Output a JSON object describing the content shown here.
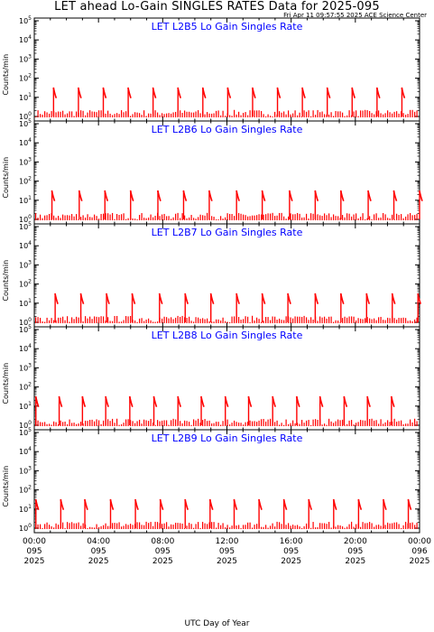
{
  "page": {
    "title": "LET ahead Lo-Gain SINGLES RATES Data for 2025-095",
    "timestamp": "Fri Apr 11 09:57:55 2025 ACE Science Center",
    "x_axis_label": "UTC Day of Year"
  },
  "colors": {
    "data": "#ff0000",
    "panel_title": "#0000ff",
    "axes": "#000000"
  },
  "chart_data": [
    {
      "type": "line",
      "title": "LET L2B5 Lo Gain Singles Rate",
      "ylabel": "Counts/min",
      "ylog": true,
      "ylim": [
        1,
        100000
      ],
      "xlim": [
        0,
        24
      ],
      "y_tick_labels": [
        "10^0",
        "10^1",
        "10^2",
        "10^3",
        "10^4",
        "10^5"
      ],
      "x_tick_labels": [
        [
          "00:00",
          "095",
          "2025"
        ],
        [
          "04:00",
          "095",
          "2025"
        ],
        [
          "08:00",
          "095",
          "2025"
        ],
        [
          "12:00",
          "095",
          "2025"
        ],
        [
          "16:00",
          "095",
          "2025"
        ],
        [
          "20:00",
          "095",
          "2025"
        ],
        [
          "00:00",
          "096",
          "2025"
        ]
      ],
      "series": [
        {
          "x": [
            1.2,
            2.75,
            4.3,
            5.85,
            7.4,
            8.95,
            10.5,
            12.05,
            13.6,
            15.15,
            16.7,
            18.25,
            19.8,
            21.35,
            22.9
          ],
          "y": [
            30,
            30,
            30,
            30,
            30,
            30,
            30,
            30,
            30,
            30,
            30,
            30,
            30,
            30,
            30
          ]
        }
      ]
    },
    {
      "type": "line",
      "title": "LET L2B6 Lo Gain Singles Rate",
      "ylabel": "Counts/min",
      "ylog": true,
      "ylim": [
        1,
        100000
      ],
      "xlim": [
        0,
        24
      ],
      "y_tick_labels": [
        "10^0",
        "10^1",
        "10^2",
        "10^3",
        "10^4",
        "10^5"
      ],
      "x_tick_labels": [
        [
          "00:00",
          "095",
          "2025"
        ],
        [
          "04:00",
          "095",
          "2025"
        ],
        [
          "08:00",
          "095",
          "2025"
        ],
        [
          "12:00",
          "095",
          "2025"
        ],
        [
          "16:00",
          "095",
          "2025"
        ],
        [
          "20:00",
          "095",
          "2025"
        ],
        [
          "00:00",
          "096",
          "2025"
        ]
      ],
      "series": [
        {
          "x": [
            1.1,
            2.8,
            4.4,
            6.0,
            7.7,
            9.3,
            10.9,
            12.6,
            14.2,
            15.9,
            17.5,
            19.1,
            20.8,
            22.4,
            24.0
          ],
          "y": [
            30,
            30,
            30,
            30,
            30,
            30,
            30,
            30,
            30,
            30,
            30,
            30,
            30,
            30,
            30
          ]
        }
      ]
    },
    {
      "type": "line",
      "title": "LET L2B7 Lo Gain Singles Rate",
      "ylabel": "Counts/min",
      "ylog": true,
      "ylim": [
        1,
        100000
      ],
      "xlim": [
        0,
        24
      ],
      "y_tick_labels": [
        "10^0",
        "10^1",
        "10^2",
        "10^3",
        "10^4",
        "10^5"
      ],
      "x_tick_labels": [
        [
          "00:00",
          "095",
          "2025"
        ],
        [
          "04:00",
          "095",
          "2025"
        ],
        [
          "08:00",
          "095",
          "2025"
        ],
        [
          "12:00",
          "095",
          "2025"
        ],
        [
          "16:00",
          "095",
          "2025"
        ],
        [
          "20:00",
          "095",
          "2025"
        ],
        [
          "00:00",
          "096",
          "2025"
        ]
      ],
      "series": [
        {
          "x": [
            1.3,
            2.9,
            4.5,
            6.1,
            7.8,
            9.4,
            11.0,
            12.6,
            14.2,
            15.8,
            17.5,
            19.1,
            20.7,
            22.3,
            23.9
          ],
          "y": [
            30,
            30,
            30,
            30,
            30,
            30,
            30,
            30,
            30,
            30,
            30,
            30,
            30,
            30,
            30
          ]
        }
      ]
    },
    {
      "type": "line",
      "title": "LET L2B8 Lo Gain Singles Rate",
      "ylabel": "Counts/min",
      "ylog": true,
      "ylim": [
        1,
        100000
      ],
      "xlim": [
        0,
        24
      ],
      "y_tick_labels": [
        "10^0",
        "10^1",
        "10^2",
        "10^3",
        "10^4",
        "10^5"
      ],
      "x_tick_labels": [
        [
          "00:00",
          "095",
          "2025"
        ],
        [
          "04:00",
          "095",
          "2025"
        ],
        [
          "08:00",
          "095",
          "2025"
        ],
        [
          "12:00",
          "095",
          "2025"
        ],
        [
          "16:00",
          "095",
          "2025"
        ],
        [
          "20:00",
          "095",
          "2025"
        ],
        [
          "00:00",
          "096",
          "2025"
        ]
      ],
      "series": [
        {
          "x": [
            0.1,
            1.55,
            3.0,
            4.45,
            5.95,
            7.45,
            8.95,
            10.4,
            11.9,
            13.35,
            14.85,
            16.35,
            17.8,
            19.3,
            20.75,
            22.25
          ],
          "y": [
            30,
            30,
            30,
            30,
            30,
            30,
            30,
            30,
            30,
            30,
            30,
            30,
            30,
            30,
            30,
            30
          ]
        }
      ]
    },
    {
      "type": "line",
      "title": "LET L2B9 Lo Gain Singles Rate",
      "ylabel": "Counts/min",
      "ylog": true,
      "ylim": [
        1,
        100000
      ],
      "xlim": [
        0,
        24
      ],
      "y_tick_labels": [
        "10^0",
        "10^1",
        "10^2",
        "10^3",
        "10^4",
        "10^5"
      ],
      "x_tick_labels": [
        [
          "00:00",
          "095",
          "2025"
        ],
        [
          "04:00",
          "095",
          "2025"
        ],
        [
          "08:00",
          "095",
          "2025"
        ],
        [
          "12:00",
          "095",
          "2025"
        ],
        [
          "16:00",
          "095",
          "2025"
        ],
        [
          "20:00",
          "095",
          "2025"
        ],
        [
          "00:00",
          "096",
          "2025"
        ]
      ],
      "series": [
        {
          "x": [
            0.1,
            1.65,
            3.15,
            4.75,
            6.3,
            7.85,
            9.4,
            10.95,
            12.45,
            14.0,
            15.55,
            17.1,
            18.65,
            20.2,
            21.75,
            23.3
          ],
          "y": [
            30,
            30,
            30,
            30,
            30,
            30,
            30,
            30,
            30,
            30,
            30,
            30,
            30,
            30,
            30,
            30
          ]
        }
      ]
    }
  ]
}
